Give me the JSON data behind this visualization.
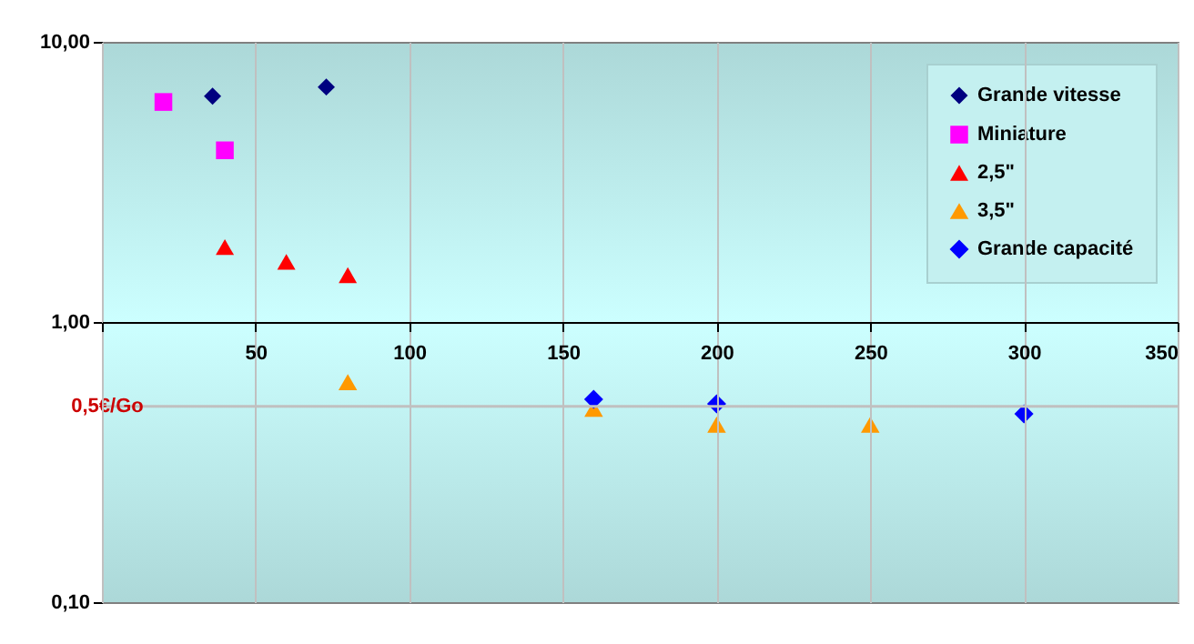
{
  "chart_data": {
    "type": "scatter",
    "series": [
      {
        "name": "Grande vitesse",
        "color": "#000080",
        "marker": "diamond",
        "x": [
          36,
          73
        ],
        "values": [
          6.4,
          6.9
        ]
      },
      {
        "name": "Miniature",
        "color": "#ff00ff",
        "marker": "square",
        "x": [
          20,
          40
        ],
        "values": [
          6.1,
          4.1
        ]
      },
      {
        "name": "2,5\"",
        "color": "#ff0000",
        "marker": "triangle",
        "x": [
          40,
          60,
          80
        ],
        "values": [
          1.85,
          1.64,
          1.47
        ]
      },
      {
        "name": "3,5\"",
        "color": "#ff9900",
        "marker": "triangle",
        "x": [
          80,
          160,
          200,
          250
        ],
        "values": [
          0.61,
          0.49,
          0.43,
          0.43
        ]
      },
      {
        "name": "Grande capacité",
        "color": "#0000ff",
        "marker": "diamond",
        "x": [
          160,
          200,
          300
        ],
        "values": [
          0.53,
          0.51,
          0.47
        ]
      }
    ],
    "xlim": [
      0,
      350
    ],
    "xticks": [
      {
        "value": 0,
        "label": null
      },
      50,
      100,
      150,
      200,
      250,
      300,
      350
    ],
    "ylim": [
      0.1,
      10
    ],
    "yticks": [
      {
        "value": 0.1,
        "label": "0,10"
      },
      {
        "value": 1,
        "label": "1,00"
      },
      {
        "value": 10,
        "label": "10,00"
      }
    ],
    "log": "y",
    "grid": "x",
    "legend": "top right",
    "ref_lines": [
      {
        "axis": "y",
        "value": 0.5,
        "label": "0,5€/Go",
        "color": "#c0c0c0"
      }
    ]
  }
}
